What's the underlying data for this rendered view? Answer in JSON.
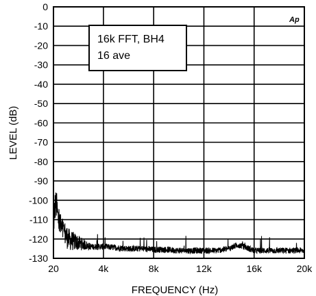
{
  "chart_data": {
    "type": "line",
    "title": "",
    "xlabel": "FREQUENCY (Hz)",
    "ylabel": "LEVEL (dB)",
    "xlim": [
      20,
      20000
    ],
    "ylim": [
      -130,
      0
    ],
    "x_ticks": [
      20,
      4000,
      8000,
      12000,
      16000,
      20000
    ],
    "x_tick_labels": [
      "20",
      "4k",
      "8k",
      "12k",
      "16k",
      "20k"
    ],
    "y_ticks": [
      0,
      -10,
      -20,
      -30,
      -40,
      -50,
      -60,
      -70,
      -80,
      -90,
      -100,
      -110,
      -120,
      -130
    ],
    "y_tick_labels": [
      "0",
      "-10",
      "-20",
      "-30",
      "-40",
      "-50",
      "-60",
      "-70",
      "-80",
      "-90",
      "-100",
      "-110",
      "-120",
      "-130"
    ],
    "grid": true,
    "annotation_lines": [
      "16k FFT, BH4",
      "16 ave"
    ],
    "logo": "Ap",
    "series": [
      {
        "color": "#000000",
        "points": [
          [
            20,
            -112
          ],
          [
            200,
            -100
          ],
          [
            400,
            -110
          ],
          [
            600,
            -114
          ],
          [
            800,
            -116
          ],
          [
            1000,
            -118
          ],
          [
            1200,
            -120
          ],
          [
            1500,
            -121
          ],
          [
            2000,
            -122
          ],
          [
            2500,
            -123
          ],
          [
            3000,
            -124
          ],
          [
            4000,
            -124
          ],
          [
            5000,
            -124.5
          ],
          [
            6000,
            -125
          ],
          [
            7000,
            -125
          ],
          [
            8000,
            -125.5
          ],
          [
            9000,
            -125.5
          ],
          [
            10000,
            -126
          ],
          [
            11000,
            -126
          ],
          [
            12000,
            -126
          ],
          [
            13000,
            -126
          ],
          [
            14000,
            -125
          ],
          [
            14700,
            -123
          ],
          [
            15200,
            -124
          ],
          [
            16000,
            -126
          ],
          [
            17000,
            -126
          ],
          [
            18000,
            -126
          ],
          [
            19000,
            -126
          ],
          [
            20000,
            -126
          ]
        ]
      }
    ]
  }
}
